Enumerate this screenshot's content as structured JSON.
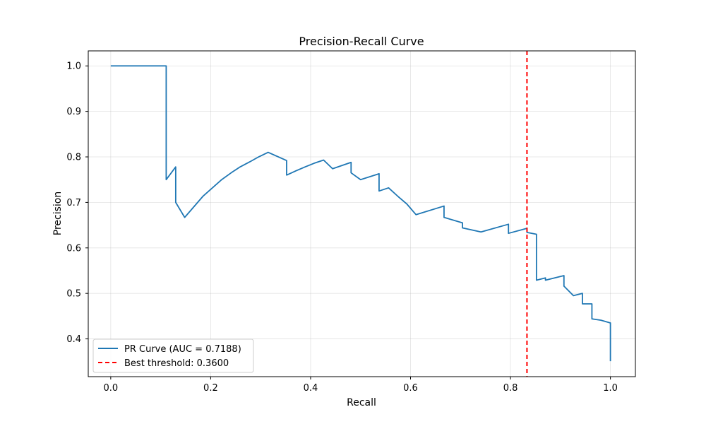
{
  "chart_data": {
    "type": "line",
    "title": "Precision-Recall Curve",
    "xlabel": "Recall",
    "ylabel": "Precision",
    "xlim": [
      -0.045,
      1.05
    ],
    "ylim": [
      0.317,
      1.033
    ],
    "xticks": [
      0.0,
      0.2,
      0.4,
      0.6,
      0.8,
      1.0
    ],
    "xtick_labels": [
      "0.0",
      "0.2",
      "0.4",
      "0.6",
      "0.8",
      "1.0"
    ],
    "yticks": [
      0.4,
      0.5,
      0.6,
      0.7,
      0.8,
      0.9,
      1.0
    ],
    "ytick_labels": [
      "0.4",
      "0.5",
      "0.6",
      "0.7",
      "0.8",
      "0.9",
      "1.0"
    ],
    "grid": true,
    "legend_position": "lower-left",
    "series": [
      {
        "name": "PR Curve (AUC = 0.7188)",
        "color": "#1f77b4",
        "style": "solid",
        "x": [
          0.0,
          0.111,
          0.111,
          0.13,
          0.13,
          0.148,
          0.185,
          0.222,
          0.241,
          0.259,
          0.278,
          0.296,
          0.315,
          0.352,
          0.352,
          0.37,
          0.389,
          0.407,
          0.426,
          0.444,
          0.481,
          0.481,
          0.5,
          0.537,
          0.537,
          0.556,
          0.574,
          0.593,
          0.611,
          0.667,
          0.667,
          0.704,
          0.704,
          0.741,
          0.796,
          0.796,
          0.833,
          0.833,
          0.852,
          0.852,
          0.87,
          0.87,
          0.907,
          0.907,
          0.926,
          0.944,
          0.944,
          0.963,
          0.963,
          0.981,
          1.0,
          1.0
        ],
        "y": [
          1.0,
          1.0,
          0.75,
          0.778,
          0.7,
          0.667,
          0.714,
          0.75,
          0.765,
          0.778,
          0.789,
          0.8,
          0.81,
          0.792,
          0.76,
          0.769,
          0.778,
          0.786,
          0.793,
          0.774,
          0.788,
          0.765,
          0.75,
          0.763,
          0.725,
          0.732,
          0.714,
          0.696,
          0.673,
          0.692,
          0.667,
          0.655,
          0.644,
          0.635,
          0.652,
          0.632,
          0.643,
          0.634,
          0.63,
          0.529,
          0.534,
          0.529,
          0.539,
          0.516,
          0.495,
          0.5,
          0.477,
          0.477,
          0.444,
          0.441,
          0.435,
          0.351
        ]
      }
    ],
    "reference_lines": [
      {
        "name": "Best threshold: 0.3600",
        "orientation": "vertical",
        "x": 0.833,
        "color": "#ff0000",
        "style": "dashed"
      }
    ]
  }
}
